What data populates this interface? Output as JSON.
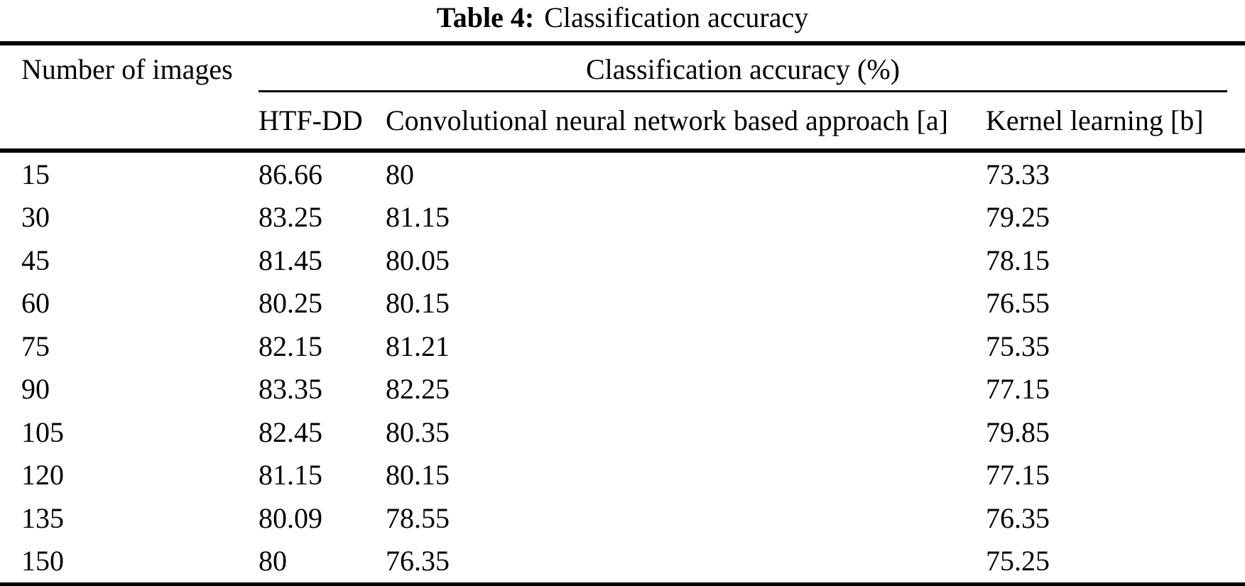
{
  "caption": {
    "label": "Table 4:",
    "title": "Classification accuracy"
  },
  "table": {
    "headers": {
      "col1": "Number of images",
      "group": "Classification accuracy (%)",
      "sub": [
        "HTF-DD",
        "Convolutional neural network based approach [a]",
        "Kernel learning [b]"
      ]
    },
    "rows": [
      [
        "15",
        "86.66",
        "80",
        "73.33"
      ],
      [
        "30",
        "83.25",
        "81.15",
        "79.25"
      ],
      [
        "45",
        "81.45",
        "80.05",
        "78.15"
      ],
      [
        "60",
        "80.25",
        "80.15",
        "76.55"
      ],
      [
        "75",
        "82.15",
        "81.21",
        "75.35"
      ],
      [
        "90",
        "83.35",
        "82.25",
        "77.15"
      ],
      [
        "105",
        "82.45",
        "80.35",
        "79.85"
      ],
      [
        "120",
        "81.15",
        "80.15",
        "77.15"
      ],
      [
        "135",
        "80.09",
        "78.55",
        "76.35"
      ],
      [
        "150",
        "80",
        "76.35",
        "75.25"
      ]
    ]
  },
  "chart_data": {
    "type": "table",
    "title": "Table 4: Classification accuracy",
    "columns": [
      "Number of images",
      "HTF-DD",
      "Convolutional neural network based approach [a]",
      "Kernel learning [b]"
    ],
    "rows": [
      [
        15,
        86.66,
        80,
        73.33
      ],
      [
        30,
        83.25,
        81.15,
        79.25
      ],
      [
        45,
        81.45,
        80.05,
        78.15
      ],
      [
        60,
        80.25,
        80.15,
        76.55
      ],
      [
        75,
        82.15,
        81.21,
        75.35
      ],
      [
        90,
        83.35,
        82.25,
        77.15
      ],
      [
        105,
        82.45,
        80.35,
        79.85
      ],
      [
        120,
        81.15,
        80.15,
        77.15
      ],
      [
        135,
        80.09,
        78.55,
        76.35
      ],
      [
        150,
        80,
        76.35,
        75.25
      ]
    ]
  },
  "colors": {
    "text": "#000000",
    "background": "#ffffff",
    "rule": "#000000"
  }
}
